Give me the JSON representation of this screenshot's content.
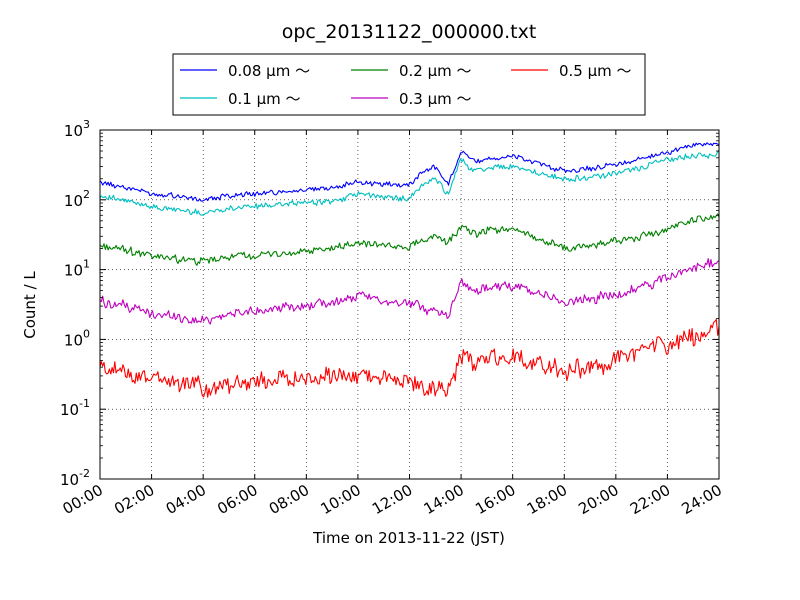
{
  "chart_data": {
    "type": "line",
    "title": "opc_20131122_000000.txt",
    "xlabel": "Time on 2013-11-22 (JST)",
    "ylabel": "Count / L",
    "y_scale": "log",
    "xlim": [
      "00:00",
      "24:00"
    ],
    "ylim": [
      0.01,
      1000
    ],
    "grid": true,
    "legend_position": "top-center",
    "x_tick_labels": [
      "00:00",
      "02:00",
      "04:00",
      "06:00",
      "08:00",
      "10:00",
      "12:00",
      "14:00",
      "16:00",
      "18:00",
      "20:00",
      "22:00",
      "24:00"
    ],
    "y_tick_labels": [
      {
        "base": "10",
        "exp": "-2"
      },
      {
        "base": "10",
        "exp": "-1"
      },
      {
        "base": "10",
        "exp": "0"
      },
      {
        "base": "10",
        "exp": "1"
      },
      {
        "base": "10",
        "exp": "2"
      },
      {
        "base": "10",
        "exp": "3"
      }
    ],
    "x": [
      "00:00",
      "01:00",
      "02:00",
      "03:00",
      "04:00",
      "05:00",
      "06:00",
      "07:00",
      "08:00",
      "09:00",
      "10:00",
      "11:00",
      "12:00",
      "12:30",
      "13:00",
      "13:30",
      "14:00",
      "14:30",
      "15:00",
      "16:00",
      "17:00",
      "18:00",
      "19:00",
      "20:00",
      "21:00",
      "22:00",
      "23:00",
      "24:00"
    ],
    "series": [
      {
        "name": "0.08 μm ～",
        "color": "#0000ff",
        "values": [
          180,
          150,
          125,
          115,
          100,
          115,
          120,
          130,
          140,
          150,
          180,
          170,
          165,
          250,
          300,
          160,
          520,
          350,
          380,
          420,
          330,
          260,
          280,
          320,
          380,
          480,
          600,
          650
        ]
      },
      {
        "name": "0.1 μm ～",
        "color": "#00bfbf",
        "values": [
          115,
          95,
          80,
          72,
          65,
          75,
          80,
          85,
          90,
          95,
          120,
          110,
          105,
          165,
          200,
          120,
          380,
          260,
          280,
          310,
          240,
          195,
          205,
          240,
          290,
          380,
          420,
          460
        ]
      },
      {
        "name": "0.2 μm ～",
        "color": "#008000",
        "values": [
          22,
          19,
          16,
          14,
          13,
          15,
          16,
          17,
          18,
          20,
          24,
          22,
          21,
          27,
          30,
          24,
          42,
          33,
          35,
          38,
          28,
          20,
          22,
          25,
          30,
          38,
          50,
          62
        ]
      },
      {
        "name": "0.3 μm ～",
        "color": "#bf00bf",
        "values": [
          3.5,
          3.0,
          2.4,
          2.1,
          1.9,
          2.3,
          2.5,
          2.8,
          3.0,
          3.3,
          4.2,
          3.6,
          3.2,
          2.8,
          2.6,
          2.2,
          6.5,
          5.0,
          5.5,
          5.8,
          4.5,
          3.4,
          3.8,
          4.5,
          5.5,
          7.5,
          10,
          14
        ]
      },
      {
        "name": "0.5 μm ～",
        "color": "#ff0000",
        "values": [
          0.38,
          0.33,
          0.28,
          0.25,
          0.2,
          0.23,
          0.25,
          0.27,
          0.28,
          0.3,
          0.31,
          0.27,
          0.24,
          0.22,
          0.2,
          0.17,
          0.55,
          0.45,
          0.5,
          0.55,
          0.45,
          0.35,
          0.4,
          0.5,
          0.65,
          0.85,
          1.1,
          1.6
        ]
      }
    ]
  }
}
